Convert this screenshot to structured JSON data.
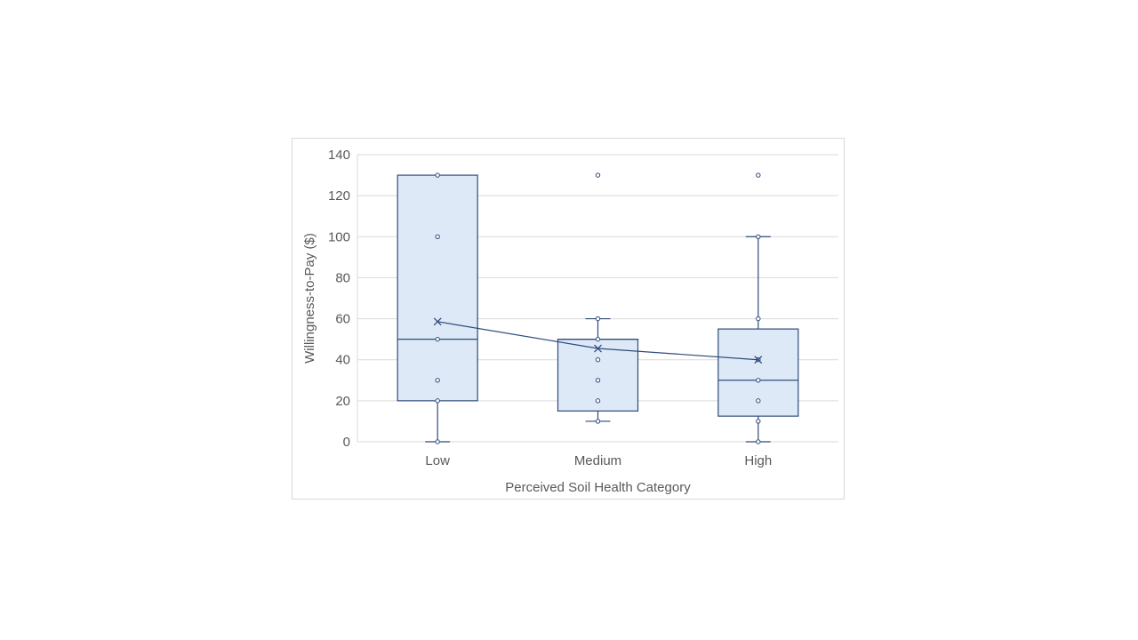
{
  "chart_data": {
    "type": "box",
    "xlabel": "Perceived Soil Health Category",
    "ylabel": "Willingness-to-Pay ($)",
    "ylim": [
      0,
      140
    ],
    "yticks": [
      0,
      20,
      40,
      60,
      80,
      100,
      120,
      140
    ],
    "grid": true,
    "categories": [
      "Low",
      "Medium",
      "High"
    ],
    "boxes": [
      {
        "category": "Low",
        "min": 0,
        "q1": 20,
        "median": 50,
        "q3": 130,
        "max": 130,
        "mean": 58.6,
        "points": [
          0,
          20,
          30,
          50,
          100,
          130
        ],
        "outliers": []
      },
      {
        "category": "Medium",
        "min": 10,
        "q1": 15,
        "median": 50,
        "q3": 50,
        "max": 60,
        "mean": 45.5,
        "points": [
          10,
          20,
          30,
          40,
          50,
          60
        ],
        "outliers": [
          130
        ]
      },
      {
        "category": "High",
        "min": 0,
        "q1": 12.5,
        "median": 30,
        "q3": 55,
        "max": 100,
        "mean": 40,
        "points": [
          0,
          10,
          20,
          30,
          40,
          60,
          100
        ],
        "outliers": [
          130
        ]
      }
    ],
    "mean_line": true,
    "colors": {
      "box_fill": "#dde9f7",
      "stroke": "#2f4b7c",
      "grid": "#d9d9d9",
      "text": "#595959"
    }
  }
}
